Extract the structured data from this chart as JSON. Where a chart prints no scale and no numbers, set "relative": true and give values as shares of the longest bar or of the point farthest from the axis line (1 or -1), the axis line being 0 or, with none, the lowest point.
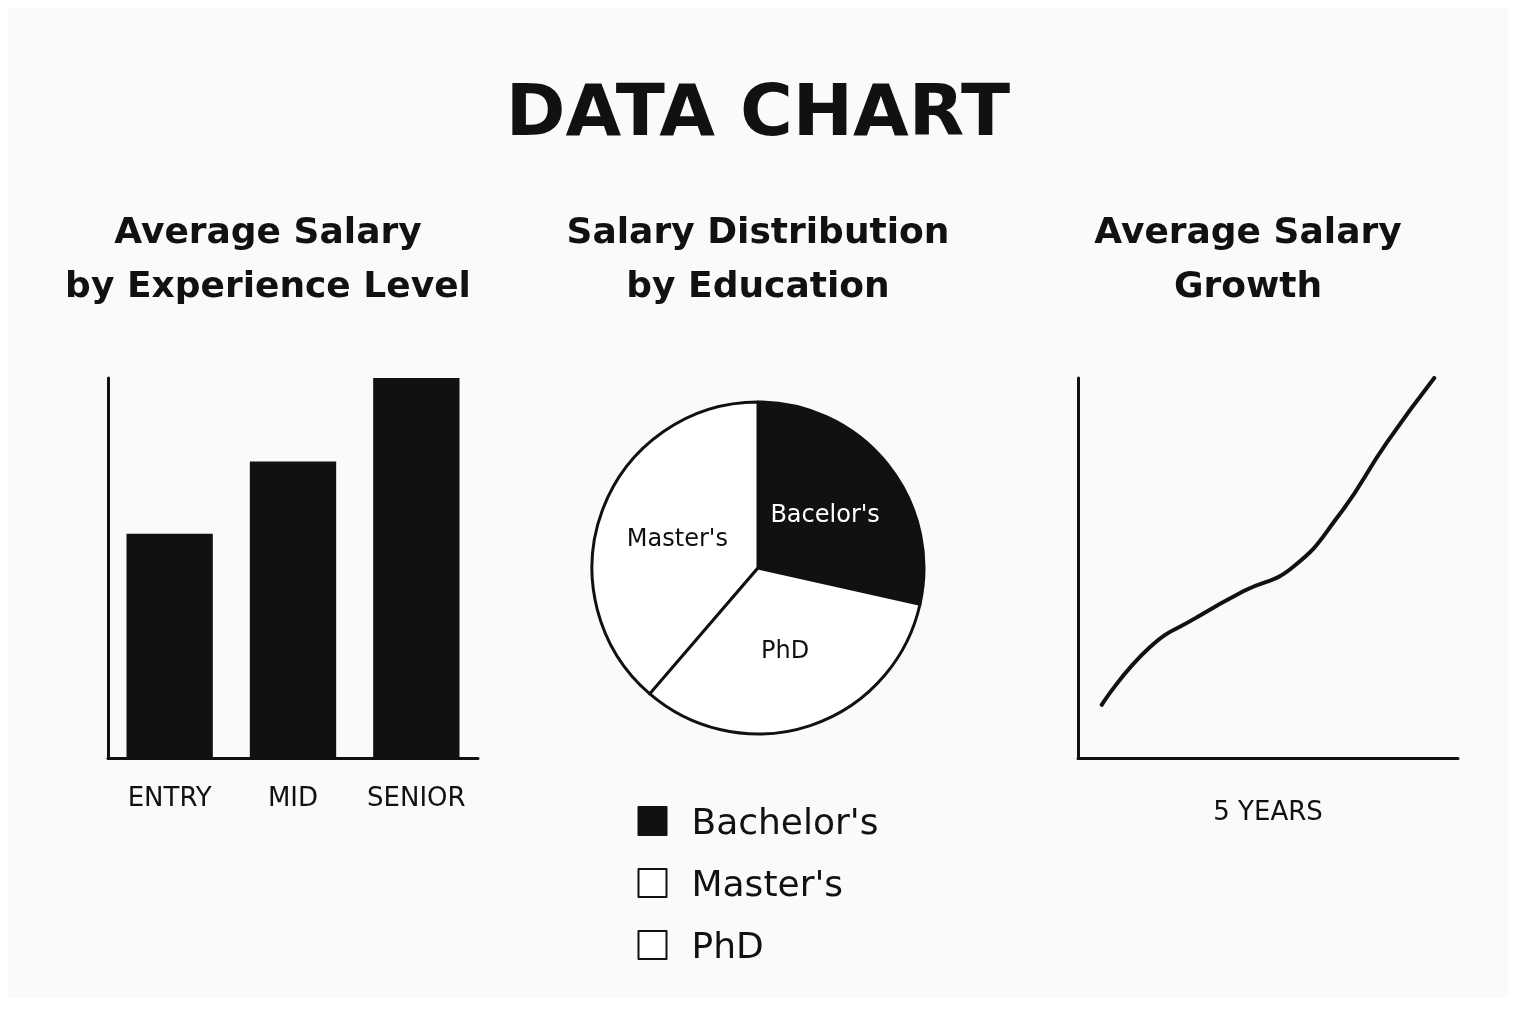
{
  "chart_data": [
    {
      "type": "other",
      "title": "DATA CHART"
    },
    {
      "type": "bar",
      "title": "Average Salary\nby Experience Level",
      "categories": [
        "ENTRY",
        "MID",
        "SENIOR"
      ],
      "values": [
        0.59,
        0.78,
        1
      ],
      "color": "#111111",
      "relative": true,
      "grid": false,
      "legend": false
    },
    {
      "type": "pie",
      "title": "Salary Distribution\nby Education",
      "categories": [
        "Bachelor's",
        "Master's",
        "PhD"
      ],
      "values": [
        28.5,
        38.7,
        32.8
      ],
      "colors": [
        "#111111",
        "#ffffff",
        "#ffffff"
      ],
      "value_labels": [
        "Bacelor's",
        "Master's",
        "PhD"
      ],
      "legend": "bottom"
    },
    {
      "type": "line",
      "title": "Average Salary\nGrowth",
      "xlabel": "5 YEARS",
      "categories": [
        null,
        null,
        null,
        null,
        null,
        null,
        null,
        null
      ],
      "values": [
        0.14,
        0.29,
        0.37,
        0.44,
        0.5,
        0.64,
        0.83,
        1
      ],
      "color": "#111111",
      "relative": true,
      "marker": "none",
      "line_style": "solid",
      "grid": false,
      "legend": false
    }
  ]
}
